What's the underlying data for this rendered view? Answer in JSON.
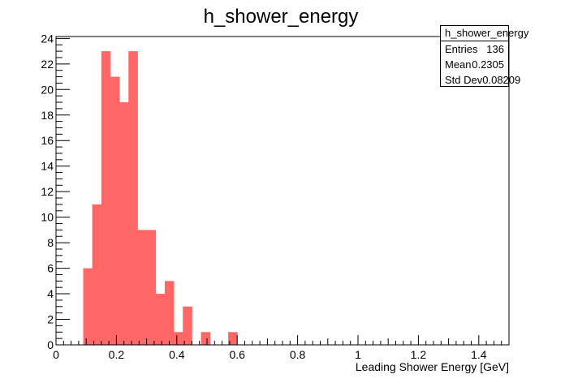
{
  "chart_data": {
    "type": "bar",
    "title": "h_shower_energy",
    "xlabel": "Leading Shower Energy [GeV]",
    "ylabel": "",
    "bin_width": 0.03,
    "bin_edges_start": 0.0,
    "xlim": [
      0,
      1.5
    ],
    "ylim": [
      0,
      24.15
    ],
    "x_ticks": [
      0,
      0.2,
      0.4,
      0.6,
      0.8,
      1,
      1.2,
      1.4
    ],
    "y_ticks": [
      0,
      2,
      4,
      6,
      8,
      10,
      12,
      14,
      16,
      18,
      20,
      22,
      24
    ],
    "values": [
      0,
      0,
      0,
      6,
      11,
      23,
      21,
      19,
      23,
      9,
      9,
      4,
      5,
      1,
      3,
      0,
      1,
      0,
      0,
      1,
      0,
      0,
      0,
      0,
      0,
      0,
      0,
      0,
      0,
      0,
      0,
      0,
      0,
      0,
      0,
      0,
      0,
      0,
      0,
      0,
      0,
      0,
      0,
      0,
      0,
      0,
      0,
      0,
      0,
      0
    ],
    "bar_color": "#ff6666",
    "grid": false
  },
  "stats_box": {
    "title": "h_shower_energy",
    "rows": [
      {
        "label": "Entries",
        "value": "136"
      },
      {
        "label": "Mean",
        "value": "0.2305"
      },
      {
        "label": "Std Dev",
        "value": "0.08209"
      }
    ]
  }
}
